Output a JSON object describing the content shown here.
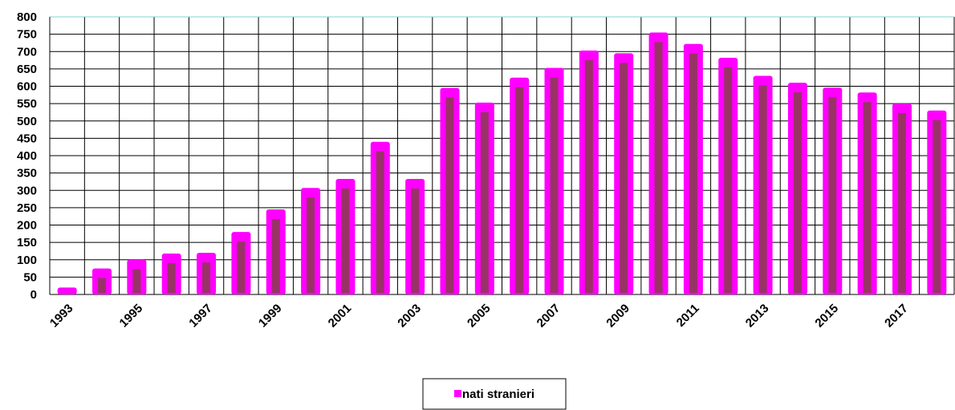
{
  "chart_data": {
    "type": "bar",
    "categories": [
      "1993",
      null,
      "1995",
      null,
      "1997",
      null,
      "1999",
      null,
      "2001",
      null,
      "2003",
      null,
      "2005",
      null,
      "2007",
      null,
      "2009",
      null,
      "2011",
      null,
      "2013",
      null,
      "2015",
      null,
      "2017",
      null
    ],
    "series": [
      {
        "name": "nati stranieri",
        "color": "#ff00ff",
        "values": [
          20,
          75,
          100,
          118,
          120,
          180,
          245,
          307,
          333,
          440,
          333,
          595,
          553,
          625,
          653,
          703,
          695,
          755,
          722,
          682,
          630,
          610,
          596,
          582,
          550,
          530
        ]
      }
    ],
    "ylim": [
      0,
      800
    ],
    "yticks": [
      0,
      50,
      100,
      150,
      200,
      250,
      300,
      350,
      400,
      450,
      500,
      550,
      600,
      650,
      700,
      750,
      800
    ],
    "grid": true,
    "legend": "bottom"
  }
}
